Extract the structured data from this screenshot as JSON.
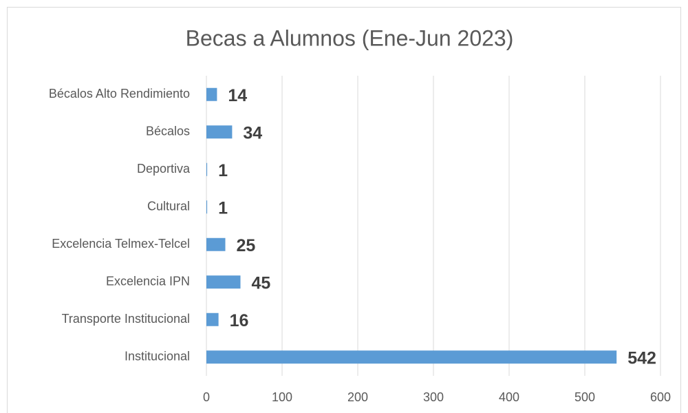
{
  "chart_data": {
    "type": "barh",
    "title": "Becas a Alumnos (Ene-Jun 2023)",
    "categories": [
      "Bécalos Alto Rendimiento",
      "Bécalos",
      "Deportiva",
      "Cultural",
      "Excelencia Telmex-Telcel",
      "Excelencia IPN",
      "Transporte Institucional",
      "Institucional"
    ],
    "values": [
      14,
      34,
      1,
      1,
      25,
      45,
      16,
      542
    ],
    "color": "#5b9bd5",
    "xlim": [
      0,
      600
    ],
    "xticks": [
      0,
      100,
      200,
      300,
      400,
      500,
      600
    ],
    "grid": true
  }
}
